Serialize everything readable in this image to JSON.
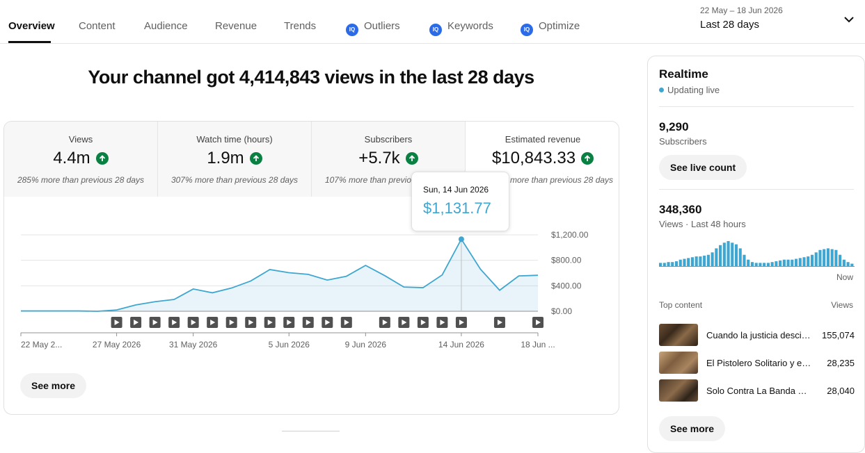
{
  "tabs": [
    {
      "label": "Overview",
      "active": true
    },
    {
      "label": "Content"
    },
    {
      "label": "Audience"
    },
    {
      "label": "Revenue"
    },
    {
      "label": "Trends"
    },
    {
      "label": "Outliers",
      "badge": "vidIQ"
    },
    {
      "label": "Keywords",
      "badge": "vidIQ"
    },
    {
      "label": "Optimize",
      "badge": "vidIQ"
    }
  ],
  "date_range": {
    "sub": "22 May – 18 Jun 2026",
    "main": "Last 28 days",
    "icon": "chevron-down-icon"
  },
  "headline": "Your channel got 4,414,843 views in the last 28 days",
  "metrics": [
    {
      "label": "Views",
      "value": "4.4m",
      "note": "285% more than previous 28 days",
      "trend": "up"
    },
    {
      "label": "Watch time (hours)",
      "value": "1.9m",
      "note": "307% more than previous 28 days",
      "trend": "up"
    },
    {
      "label": "Subscribers",
      "value": "+5.7k",
      "note": "107% more than previous 28 days",
      "trend": "up"
    },
    {
      "label": "Estimated revenue",
      "value": "$10,843.33",
      "note": "more than previous 28 days",
      "trend": "up",
      "selected": true
    }
  ],
  "chart_data": {
    "type": "area",
    "x": [
      "22 May",
      "23 May",
      "24 May",
      "25 May",
      "26 May",
      "27 May",
      "28 May",
      "29 May",
      "30 May",
      "31 May",
      "1 Jun",
      "2 Jun",
      "3 Jun",
      "4 Jun",
      "5 Jun",
      "6 Jun",
      "7 Jun",
      "8 Jun",
      "9 Jun",
      "10 Jun",
      "11 Jun",
      "12 Jun",
      "13 Jun",
      "14 Jun",
      "15 Jun",
      "16 Jun",
      "17 Jun",
      "18 Jun"
    ],
    "values": [
      5,
      5,
      5,
      5,
      0,
      20,
      100,
      150,
      185,
      350,
      290,
      365,
      475,
      655,
      605,
      580,
      490,
      550,
      720,
      560,
      380,
      370,
      570,
      1131.77,
      660,
      330,
      555,
      565
    ],
    "y_ticks": [
      "$1,200.00",
      "$800.00",
      "$400.00",
      "$0.00"
    ],
    "y_tick_values": [
      1200,
      800,
      400,
      0
    ],
    "ylim": [
      0,
      1200
    ],
    "x_tick_labels": [
      {
        "label": "22 May 2...",
        "index": 0
      },
      {
        "label": "27 May 2026",
        "index": 5
      },
      {
        "label": "31 May 2026",
        "index": 9
      },
      {
        "label": "5 Jun 2026",
        "index": 14
      },
      {
        "label": "9 Jun 2026",
        "index": 18
      },
      {
        "label": "14 Jun 2026",
        "index": 23
      },
      {
        "label": "18 Jun ...",
        "index": 27
      }
    ],
    "upload_marker_indices": [
      5,
      6,
      7,
      8,
      9,
      10,
      11,
      12,
      13,
      14,
      15,
      16,
      17,
      19,
      20,
      21,
      22,
      23,
      25,
      27
    ],
    "highlight_index": 23,
    "color": "#3ea6d0",
    "grid": true
  },
  "tooltip": {
    "date": "Sun, 14 Jun 2026",
    "value": "$1,131.77"
  },
  "main_see_more": "See more",
  "realtime": {
    "title": "Realtime",
    "live_label": "Updating live",
    "subscribers_value": "9,290",
    "subscribers_label": "Subscribers",
    "live_count_button": "See live count",
    "views_value": "348,360",
    "views_label": "Views · Last 48 hours",
    "bars": [
      4,
      4,
      5,
      5,
      6,
      8,
      9,
      10,
      11,
      12,
      12,
      13,
      14,
      17,
      22,
      26,
      29,
      31,
      29,
      27,
      22,
      14,
      8,
      5,
      4,
      4,
      4,
      4,
      5,
      6,
      7,
      8,
      8,
      8,
      9,
      10,
      11,
      12,
      14,
      17,
      20,
      21,
      22,
      21,
      20,
      14,
      8,
      5,
      3
    ],
    "now_label": "Now",
    "top_content_label": "Top content",
    "views_col_label": "Views",
    "top_content": [
      {
        "title": "Cuando la justicia desciende del cielo",
        "views": "155,074"
      },
      {
        "title": "El Pistolero Solitario y el destino",
        "views": "28,235"
      },
      {
        "title": "Solo Contra La Banda Maldita",
        "views": "28,040"
      }
    ],
    "see_more": "See more"
  }
}
